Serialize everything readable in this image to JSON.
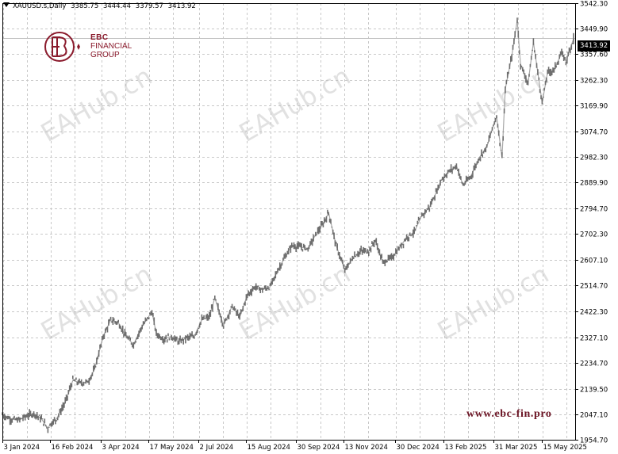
{
  "header": {
    "symbol": "XAUUSD.s,Daily",
    "ohlc": [
      "3385.75",
      "3444.44",
      "3379.57",
      "3413.92"
    ]
  },
  "logo": {
    "line1": "EBC",
    "line2": "FINANCIAL",
    "line3": "GROUP",
    "color": "#8a1a2c"
  },
  "website": "www.ebc-fin.pro",
  "watermark": "EAHub.cn",
  "current_price_label": "3413.92",
  "chart_data": {
    "type": "line",
    "title": "",
    "xlabel": "",
    "ylabel": "",
    "ylim": [
      1954.0,
      3542.0
    ],
    "y_ticks": [
      "3542.30",
      "3449.90",
      "3357.60",
      "3262.30",
      "3169.90",
      "3074.70",
      "2982.30",
      "2889.90",
      "2794.70",
      "2702.30",
      "2607.10",
      "2514.70",
      "2422.30",
      "2327.10",
      "2234.70",
      "2139.50",
      "2047.10",
      "1954.70"
    ],
    "x_ticks": [
      "3 Jan 2024",
      "16 Feb 2024",
      "3 Apr 2024",
      "17 May 2024",
      "2 Jul 2024",
      "15 Aug 2024",
      "30 Sep 2024",
      "13 Nov 2024",
      "30 Dec 2024",
      "13 Feb 2025",
      "31 Mar 2025",
      "15 May 2025"
    ],
    "grid": true,
    "series": [
      {
        "color": "#6e6e6e",
        "x": [
          "2024-01-03",
          "2024-01-10",
          "2024-01-18",
          "2024-01-25",
          "2024-02-01",
          "2024-02-08",
          "2024-02-14",
          "2024-02-16",
          "2024-02-22",
          "2024-03-01",
          "2024-03-08",
          "2024-03-15",
          "2024-03-22",
          "2024-03-28",
          "2024-04-05",
          "2024-04-12",
          "2024-04-19",
          "2024-04-26",
          "2024-05-03",
          "2024-05-10",
          "2024-05-20",
          "2024-05-24",
          "2024-05-31",
          "2024-06-07",
          "2024-06-14",
          "2024-06-21",
          "2024-06-28",
          "2024-07-05",
          "2024-07-12",
          "2024-07-17",
          "2024-07-25",
          "2024-08-02",
          "2024-08-09",
          "2024-08-16",
          "2024-08-23",
          "2024-08-30",
          "2024-09-06",
          "2024-09-13",
          "2024-09-20",
          "2024-09-26",
          "2024-10-04",
          "2024-10-11",
          "2024-10-18",
          "2024-10-25",
          "2024-10-30",
          "2024-11-06",
          "2024-11-14",
          "2024-11-22",
          "2024-11-29",
          "2024-12-06",
          "2024-12-12",
          "2024-12-19",
          "2024-12-27",
          "2025-01-03",
          "2025-01-10",
          "2025-01-17",
          "2025-01-24",
          "2025-01-31",
          "2025-02-07",
          "2025-02-11",
          "2025-02-18",
          "2025-02-25",
          "2025-03-03",
          "2025-03-10",
          "2025-03-18",
          "2025-03-25",
          "2025-04-01",
          "2025-04-03",
          "2025-04-08",
          "2025-04-11",
          "2025-04-17",
          "2025-04-22",
          "2025-04-25",
          "2025-05-02",
          "2025-05-07",
          "2025-05-15",
          "2025-05-20",
          "2025-05-26",
          "2025-06-02",
          "2025-06-06",
          "2025-06-13"
        ],
        "values": [
          2045,
          2030,
          2025,
          2040,
          2050,
          2030,
          1995,
          2010,
          2030,
          2090,
          2170,
          2160,
          2165,
          2210,
          2330,
          2390,
          2380,
          2330,
          2300,
          2360,
          2420,
          2340,
          2320,
          2330,
          2310,
          2325,
          2330,
          2390,
          2400,
          2470,
          2370,
          2440,
          2400,
          2480,
          2510,
          2500,
          2510,
          2570,
          2620,
          2660,
          2655,
          2650,
          2700,
          2740,
          2780,
          2660,
          2570,
          2620,
          2640,
          2640,
          2680,
          2600,
          2615,
          2650,
          2690,
          2710,
          2770,
          2800,
          2860,
          2900,
          2930,
          2950,
          2880,
          2910,
          2980,
          3020,
          3110,
          3130,
          2980,
          3230,
          3350,
          3480,
          3320,
          3250,
          3400,
          3180,
          3290,
          3300,
          3360,
          3330,
          3413
        ]
      }
    ]
  }
}
